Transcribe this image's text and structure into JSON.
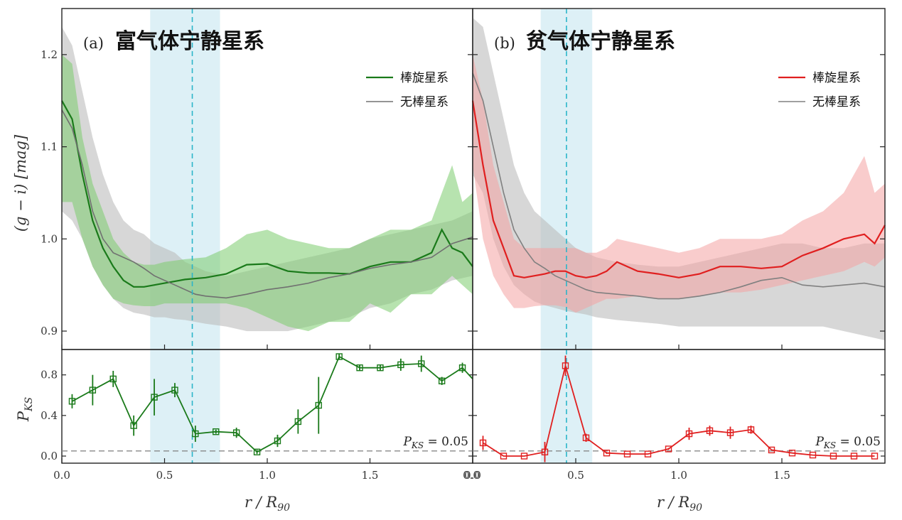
{
  "figure": {
    "ylabel_top": "(g − i) [mag]",
    "ylabel_bottom": "P",
    "ylabel_bottom_sub": "KS",
    "xlabel": "r / R",
    "xlabel_sub": "90",
    "threshold_note": "P",
    "threshold_note_sub": "KS",
    "threshold_note_value": " = 0.05"
  },
  "panels": [
    {
      "tag": "(a)",
      "title": "富气体宁静星系",
      "legend": [
        "棒旋星系",
        "无棒星系"
      ],
      "colors": {
        "barred": "#1a7a1a",
        "barred_band": "#7ccc6e",
        "unbarred": "#707070",
        "unbarred_band": "#bdbdbd"
      },
      "x_ticks": [
        "0.0",
        "0.5",
        "1.0",
        "1.5",
        "0.0"
      ],
      "shade_range": [
        0.43,
        0.77
      ],
      "vline": 0.635
    },
    {
      "tag": "(b)",
      "title": "贫气体宁静星系",
      "legend": [
        "棒旋星系",
        "无棒星系"
      ],
      "colors": {
        "barred": "#e01f1f",
        "barred_band": "#f4a3a3",
        "unbarred": "#808080",
        "unbarred_band": "#bdbdbd"
      },
      "x_ticks": [
        "0.0",
        "0.5",
        "1.0",
        "1.5"
      ],
      "shade_range": [
        0.33,
        0.58
      ],
      "vline": 0.455
    }
  ],
  "chart_data": [
    {
      "type": "line",
      "title": "富气体宁静星系",
      "xlabel": "r/R90",
      "ylabel": "(g − i) [mag]",
      "xlim": [
        0,
        2.0
      ],
      "ylim": [
        0.88,
        1.25
      ],
      "yticks": [
        0.9,
        1.0,
        1.1,
        1.2
      ],
      "legend_position": "top-right",
      "series": [
        {
          "name": "棒旋星系",
          "x": [
            0.0,
            0.05,
            0.1,
            0.15,
            0.2,
            0.25,
            0.3,
            0.35,
            0.4,
            0.45,
            0.5,
            0.6,
            0.7,
            0.8,
            0.9,
            1.0,
            1.1,
            1.2,
            1.3,
            1.4,
            1.5,
            1.6,
            1.7,
            1.8,
            1.85,
            1.9,
            1.95,
            2.0
          ],
          "y": [
            1.15,
            1.13,
            1.07,
            1.02,
            0.99,
            0.97,
            0.955,
            0.948,
            0.948,
            0.95,
            0.952,
            0.956,
            0.958,
            0.962,
            0.972,
            0.973,
            0.965,
            0.963,
            0.963,
            0.962,
            0.97,
            0.975,
            0.975,
            0.985,
            1.01,
            0.99,
            0.985,
            0.97
          ],
          "band_low": [
            1.04,
            1.04,
            1.0,
            0.97,
            0.95,
            0.935,
            0.93,
            0.928,
            0.927,
            0.927,
            0.93,
            0.93,
            0.93,
            0.93,
            0.925,
            0.915,
            0.905,
            0.9,
            0.91,
            0.91,
            0.93,
            0.92,
            0.94,
            0.94,
            0.95,
            0.96,
            0.95,
            0.94
          ],
          "band_high": [
            1.2,
            1.19,
            1.11,
            1.06,
            1.03,
            1.0,
            0.985,
            0.975,
            0.972,
            0.972,
            0.975,
            0.978,
            0.98,
            0.99,
            1.005,
            1.01,
            1.0,
            0.995,
            0.99,
            0.99,
            1.0,
            1.01,
            1.01,
            1.02,
            1.05,
            1.08,
            1.04,
            1.05
          ]
        },
        {
          "name": "无棒星系",
          "x": [
            0.0,
            0.05,
            0.1,
            0.15,
            0.2,
            0.25,
            0.3,
            0.35,
            0.4,
            0.45,
            0.5,
            0.55,
            0.6,
            0.65,
            0.7,
            0.8,
            0.9,
            1.0,
            1.1,
            1.2,
            1.3,
            1.4,
            1.5,
            1.6,
            1.7,
            1.8,
            1.9,
            2.0
          ],
          "y": [
            1.14,
            1.12,
            1.08,
            1.03,
            1.0,
            0.985,
            0.98,
            0.975,
            0.968,
            0.96,
            0.955,
            0.95,
            0.945,
            0.94,
            0.938,
            0.936,
            0.94,
            0.945,
            0.948,
            0.952,
            0.958,
            0.962,
            0.968,
            0.972,
            0.975,
            0.98,
            0.995,
            1.002
          ],
          "band_low": [
            1.03,
            1.02,
            1.0,
            0.97,
            0.95,
            0.935,
            0.925,
            0.92,
            0.918,
            0.915,
            0.915,
            0.913,
            0.912,
            0.91,
            0.908,
            0.905,
            0.9,
            0.9,
            0.9,
            0.905,
            0.91,
            0.915,
            0.925,
            0.93,
            0.94,
            0.945,
            0.955,
            0.96
          ],
          "band_high": [
            1.23,
            1.21,
            1.16,
            1.11,
            1.07,
            1.04,
            1.02,
            1.01,
            1.005,
            0.995,
            0.99,
            0.985,
            0.975,
            0.97,
            0.965,
            0.96,
            0.965,
            0.97,
            0.975,
            0.98,
            0.985,
            0.99,
            1.0,
            1.005,
            1.01,
            1.015,
            1.02,
            1.03
          ]
        }
      ],
      "pks": {
        "ylim": [
          -0.07,
          1.05
        ],
        "yticks": [
          0.0,
          0.4,
          0.8
        ],
        "threshold": 0.05,
        "x": [
          0.05,
          0.15,
          0.25,
          0.35,
          0.45,
          0.55,
          0.65,
          0.75,
          0.85,
          0.95,
          1.05,
          1.15,
          1.25,
          1.35,
          1.45,
          1.55,
          1.65,
          1.75,
          1.85,
          1.95,
          2.0
        ],
        "y": [
          0.54,
          0.65,
          0.76,
          0.3,
          0.58,
          0.65,
          0.22,
          0.24,
          0.23,
          0.04,
          0.15,
          0.34,
          0.5,
          0.98,
          0.87,
          0.87,
          0.9,
          0.91,
          0.74,
          0.87,
          0.76
        ],
        "err": [
          0.07,
          0.15,
          0.08,
          0.1,
          0.18,
          0.07,
          0.08,
          0.02,
          0.05,
          0.02,
          0.06,
          0.12,
          0.28,
          0.03,
          0.03,
          0.03,
          0.06,
          0.08,
          0.04,
          0.05,
          0.0
        ]
      }
    },
    {
      "type": "line",
      "title": "贫气体宁静星系",
      "xlabel": "r/R90",
      "ylabel": "(g − i) [mag]",
      "xlim": [
        0,
        2.0
      ],
      "ylim": [
        0.88,
        1.25
      ],
      "yticks": [
        0.9,
        1.0,
        1.1,
        1.2
      ],
      "legend_position": "top-right",
      "series": [
        {
          "name": "棒旋星系",
          "x": [
            0.0,
            0.05,
            0.1,
            0.15,
            0.2,
            0.25,
            0.3,
            0.35,
            0.4,
            0.45,
            0.5,
            0.55,
            0.6,
            0.65,
            0.7,
            0.8,
            0.9,
            1.0,
            1.1,
            1.2,
            1.3,
            1.4,
            1.5,
            1.6,
            1.7,
            1.8,
            1.9,
            1.95,
            2.0
          ],
          "y": [
            1.15,
            1.08,
            1.02,
            0.99,
            0.96,
            0.958,
            0.96,
            0.962,
            0.965,
            0.965,
            0.96,
            0.958,
            0.96,
            0.965,
            0.975,
            0.965,
            0.962,
            0.958,
            0.962,
            0.97,
            0.97,
            0.968,
            0.97,
            0.982,
            0.99,
            1.0,
            1.005,
            0.995,
            1.015
          ],
          "band_low": [
            1.08,
            1.0,
            0.96,
            0.94,
            0.925,
            0.925,
            0.927,
            0.928,
            0.928,
            0.926,
            0.92,
            0.925,
            0.93,
            0.935,
            0.935,
            0.938,
            0.935,
            0.935,
            0.938,
            0.942,
            0.942,
            0.945,
            0.95,
            0.955,
            0.96,
            0.965,
            0.975,
            0.97,
            0.98
          ],
          "band_high": [
            1.2,
            1.15,
            1.08,
            1.04,
            1.0,
            0.99,
            0.99,
            0.99,
            0.99,
            0.99,
            0.99,
            0.985,
            0.985,
            0.99,
            1.0,
            0.995,
            0.99,
            0.985,
            0.99,
            1.0,
            1.0,
            1.0,
            1.005,
            1.02,
            1.03,
            1.05,
            1.09,
            1.05,
            1.06
          ]
        },
        {
          "name": "无棒星系",
          "x": [
            0.0,
            0.05,
            0.1,
            0.15,
            0.2,
            0.25,
            0.3,
            0.35,
            0.4,
            0.45,
            0.5,
            0.55,
            0.6,
            0.7,
            0.8,
            0.9,
            1.0,
            1.1,
            1.2,
            1.3,
            1.4,
            1.5,
            1.6,
            1.7,
            1.8,
            1.9,
            2.0
          ],
          "y": [
            1.18,
            1.15,
            1.1,
            1.05,
            1.01,
            0.99,
            0.975,
            0.968,
            0.96,
            0.955,
            0.95,
            0.945,
            0.942,
            0.94,
            0.938,
            0.935,
            0.935,
            0.938,
            0.942,
            0.948,
            0.955,
            0.958,
            0.95,
            0.948,
            0.95,
            0.952,
            0.948
          ],
          "band_low": [
            1.07,
            1.05,
            1.0,
            0.97,
            0.95,
            0.94,
            0.932,
            0.928,
            0.925,
            0.922,
            0.92,
            0.918,
            0.915,
            0.912,
            0.91,
            0.908,
            0.905,
            0.905,
            0.905,
            0.905,
            0.905,
            0.905,
            0.905,
            0.905,
            0.9,
            0.895,
            0.89
          ],
          "band_high": [
            1.24,
            1.23,
            1.18,
            1.13,
            1.08,
            1.05,
            1.03,
            1.02,
            1.01,
            1.0,
            0.99,
            0.985,
            0.98,
            0.975,
            0.972,
            0.97,
            0.97,
            0.975,
            0.98,
            0.985,
            0.99,
            0.995,
            0.995,
            0.99,
            0.99,
            0.995,
            0.995
          ]
        }
      ],
      "pks": {
        "ylim": [
          -0.07,
          1.05
        ],
        "yticks": [
          0.0,
          0.4,
          0.8
        ],
        "threshold": 0.05,
        "x": [
          0.05,
          0.15,
          0.25,
          0.35,
          0.45,
          0.55,
          0.65,
          0.75,
          0.85,
          0.95,
          1.05,
          1.15,
          1.25,
          1.35,
          1.45,
          1.55,
          1.65,
          1.75,
          1.85,
          1.95
        ],
        "y": [
          0.13,
          0.0,
          0.0,
          0.04,
          0.89,
          0.18,
          0.03,
          0.02,
          0.02,
          0.07,
          0.22,
          0.25,
          0.23,
          0.26,
          0.06,
          0.03,
          0.01,
          0.0,
          0.0,
          0.0
        ],
        "err": [
          0.07,
          0.0,
          0.0,
          0.1,
          0.1,
          0.04,
          0.01,
          0.0,
          0.0,
          0.01,
          0.06,
          0.05,
          0.06,
          0.04,
          0.0,
          0.0,
          0.0,
          0.0,
          0.0,
          0.0
        ]
      }
    }
  ]
}
